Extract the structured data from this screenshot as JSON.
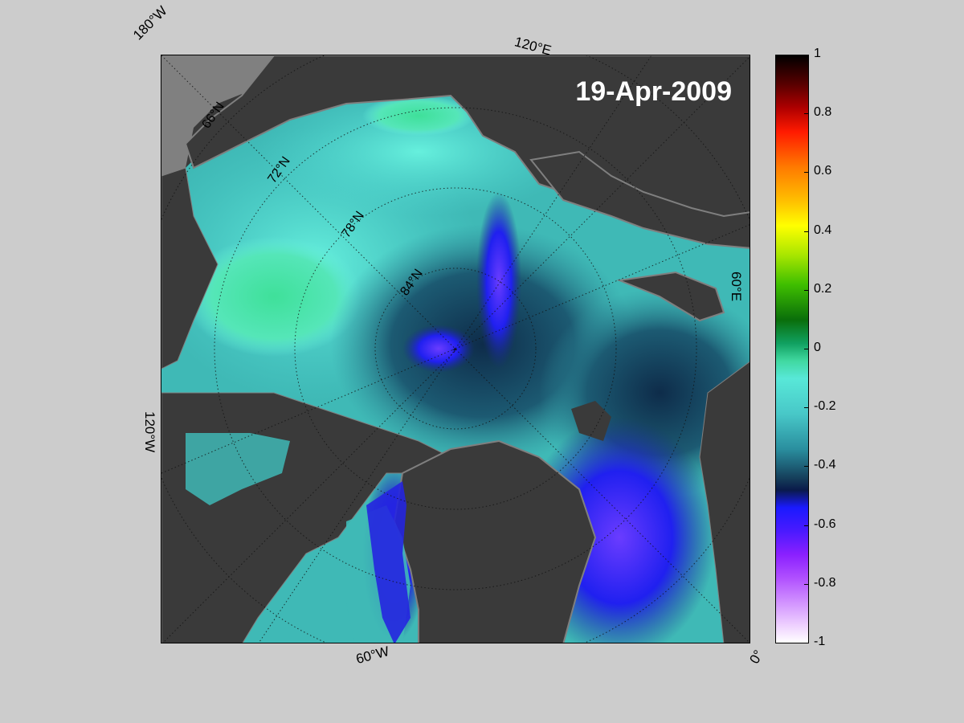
{
  "map": {
    "date": "19-Apr-2009",
    "longitude_labels": [
      "180°W",
      "120°E",
      "60°E",
      "0°",
      "60°W",
      "120°W"
    ],
    "latitude_labels": [
      "66°N",
      "72°N",
      "78°N",
      "84°N"
    ],
    "colors": {
      "land": "#3a3a3a",
      "coast_outline": "#7f7f7f",
      "background": "#cccccc"
    }
  },
  "colorbar": {
    "ticks": [
      "1",
      "0.8",
      "0.6",
      "0.4",
      "0.2",
      "0",
      "-0.2",
      "-0.4",
      "-0.6",
      "-0.8",
      "-1"
    ],
    "min": -1,
    "max": 1
  }
}
